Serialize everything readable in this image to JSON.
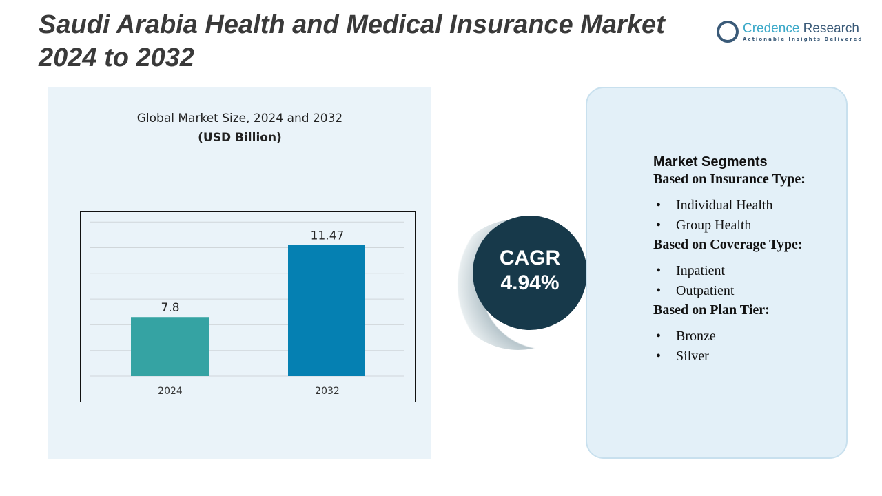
{
  "title": "Saudi Arabia Health and Medical Insurance Market 2024 to 2032",
  "logo": {
    "name_part1": "Credence",
    "name_part2": "Research",
    "tagline": "Actionable Insights Delivered"
  },
  "chart_data": {
    "type": "bar",
    "title": "Global Market Size, 2024 and 2032",
    "subtitle": "(USD Billion)",
    "categories": [
      "2024",
      "2032"
    ],
    "values": [
      7.8,
      11.47
    ],
    "colors": [
      "#35a3a3",
      "#0580b2"
    ],
    "data_labels": [
      "7.8",
      "11.47"
    ],
    "grid": true,
    "ylim": [
      4.8,
      12.6
    ]
  },
  "cagr": {
    "label": "CAGR",
    "value": "4.94%"
  },
  "segments": {
    "heading": "Market Segments",
    "groups": [
      {
        "title": "Based on Insurance Type:",
        "items": [
          "Individual Health",
          "Group Health"
        ]
      },
      {
        "title": "Based on Coverage Type:",
        "items": [
          "Inpatient",
          "Outpatient"
        ]
      },
      {
        "title": "Based on Plan Tier:",
        "items": [
          "Bronze",
          "Silver"
        ]
      }
    ]
  }
}
